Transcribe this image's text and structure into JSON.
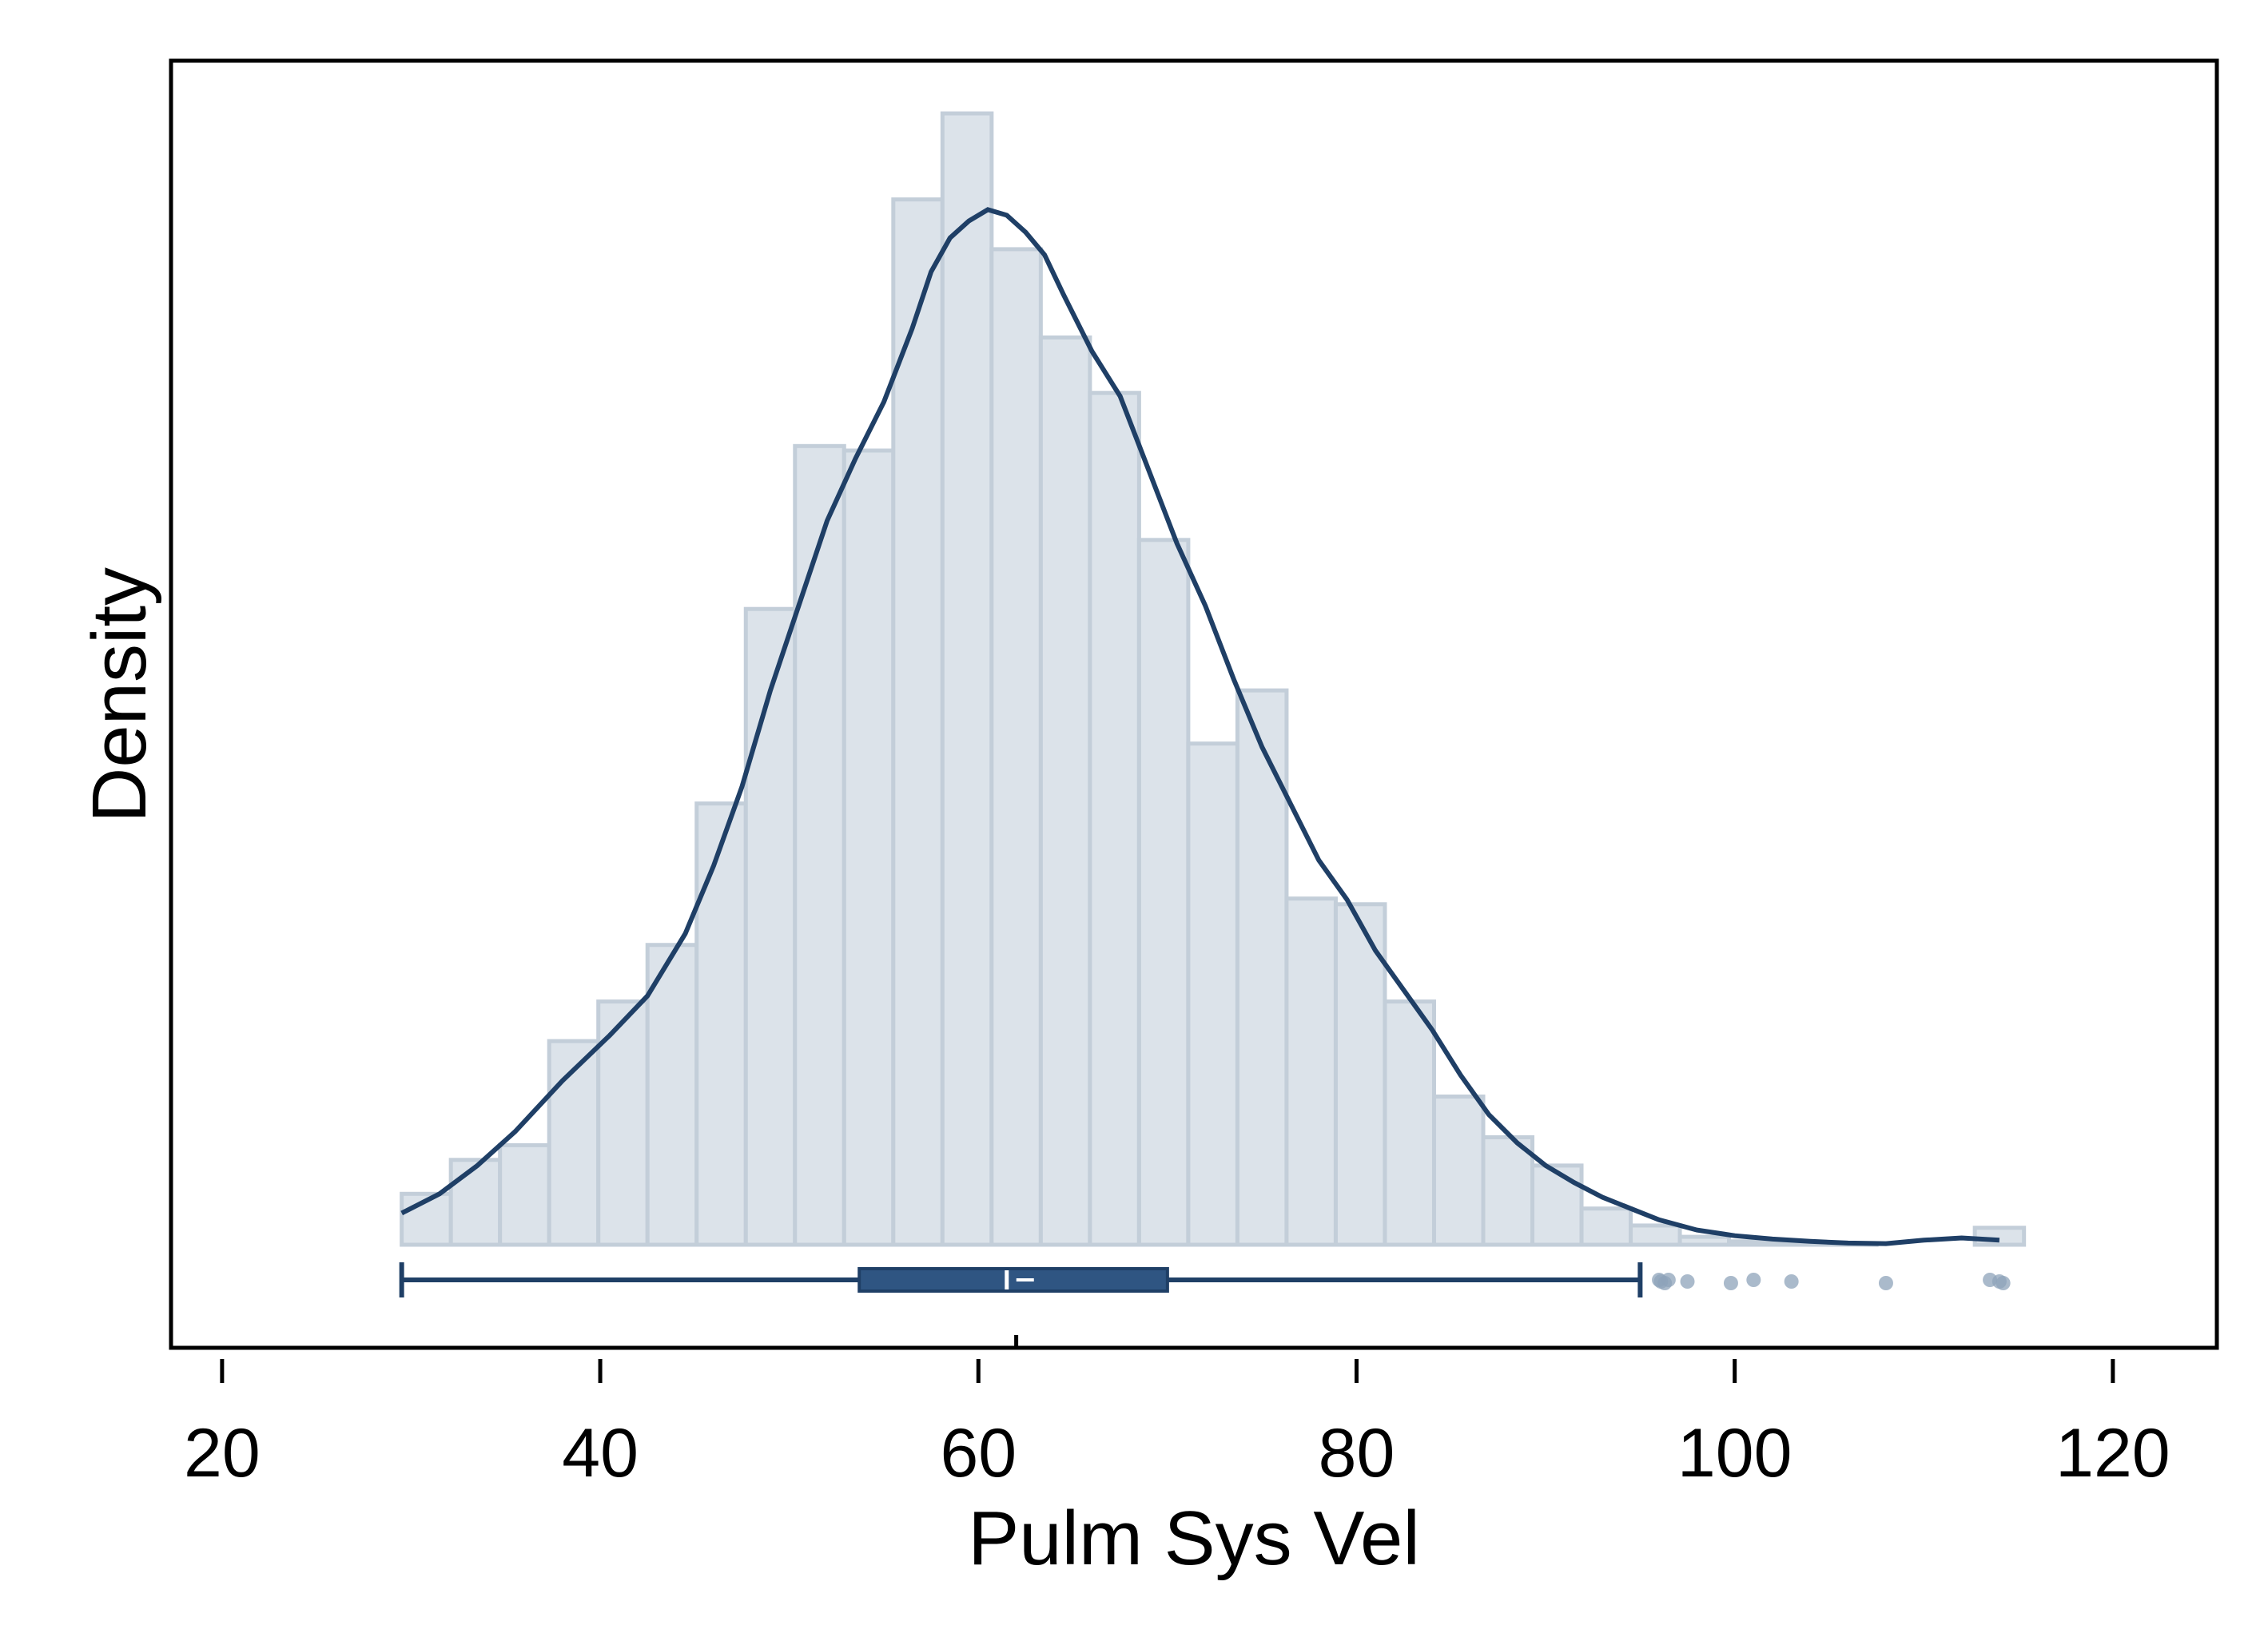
{
  "chart_data": {
    "type": "histogram",
    "xlabel": "Pulm Sys Vel",
    "ylabel": "Density",
    "xlim": [
      17.3,
      125.5
    ],
    "x_ticks": [
      20,
      40,
      60,
      80,
      100,
      120
    ],
    "y_ticks": [],
    "grid": false,
    "bins": {
      "start": 29.5,
      "width": 2.6,
      "relative_heights": [
        0.045,
        0.075,
        0.088,
        0.18,
        0.215,
        0.265,
        0.39,
        0.562,
        0.706,
        0.702,
        0.924,
        1.0,
        0.88,
        0.802,
        0.753,
        0.623,
        0.443,
        0.49,
        0.306,
        0.301,
        0.215,
        0.131,
        0.095,
        0.07,
        0.032,
        0.017,
        0.007,
        0.003,
        0.002,
        0.001,
        0.0,
        0.0,
        0.015
      ]
    },
    "density_curve": [
      [
        29.5,
        0.028
      ],
      [
        31.5,
        0.045
      ],
      [
        33.5,
        0.07
      ],
      [
        35.5,
        0.1
      ],
      [
        38,
        0.145
      ],
      [
        40.5,
        0.185
      ],
      [
        42.5,
        0.22
      ],
      [
        44.5,
        0.275
      ],
      [
        46,
        0.335
      ],
      [
        47.5,
        0.405
      ],
      [
        49,
        0.49
      ],
      [
        50.5,
        0.565
      ],
      [
        52,
        0.64
      ],
      [
        53.5,
        0.695
      ],
      [
        55,
        0.745
      ],
      [
        56.5,
        0.81
      ],
      [
        57.5,
        0.86
      ],
      [
        58.5,
        0.89
      ],
      [
        59.5,
        0.905
      ],
      [
        60.5,
        0.915
      ],
      [
        61.5,
        0.91
      ],
      [
        62.5,
        0.895
      ],
      [
        63.5,
        0.875
      ],
      [
        64.5,
        0.84
      ],
      [
        66,
        0.79
      ],
      [
        67.5,
        0.75
      ],
      [
        69,
        0.685
      ],
      [
        70.5,
        0.62
      ],
      [
        72,
        0.565
      ],
      [
        73.5,
        0.5
      ],
      [
        75,
        0.44
      ],
      [
        76.5,
        0.39
      ],
      [
        78,
        0.34
      ],
      [
        79.5,
        0.305
      ],
      [
        81,
        0.26
      ],
      [
        82.5,
        0.225
      ],
      [
        84,
        0.19
      ],
      [
        85.5,
        0.15
      ],
      [
        87,
        0.115
      ],
      [
        88.5,
        0.09
      ],
      [
        90,
        0.07
      ],
      [
        91.5,
        0.055
      ],
      [
        93,
        0.042
      ],
      [
        94.5,
        0.032
      ],
      [
        96,
        0.022
      ],
      [
        98,
        0.013
      ],
      [
        100,
        0.008
      ],
      [
        102,
        0.005
      ],
      [
        104,
        0.003
      ],
      [
        106,
        0.0015
      ],
      [
        108,
        0.001
      ],
      [
        110,
        0.004
      ],
      [
        112,
        0.006
      ],
      [
        114,
        0.004
      ]
    ],
    "boxplot": {
      "min": 29.5,
      "q1": 53.7,
      "median": 61.5,
      "q3": 70.0,
      "max": 95.0,
      "mean": 62.0,
      "outliers": [
        96.0,
        96.1,
        96.3,
        96.5,
        97.5,
        99.8,
        101.0,
        103.0,
        108.0,
        113.5,
        114.0,
        114.2
      ]
    },
    "colors": {
      "bar_fill": "#dce3ea",
      "bar_stroke": "#c3ced9",
      "curve": "#1f3f66",
      "box": "#2f5582",
      "outlier": "#8ea3ba"
    }
  }
}
